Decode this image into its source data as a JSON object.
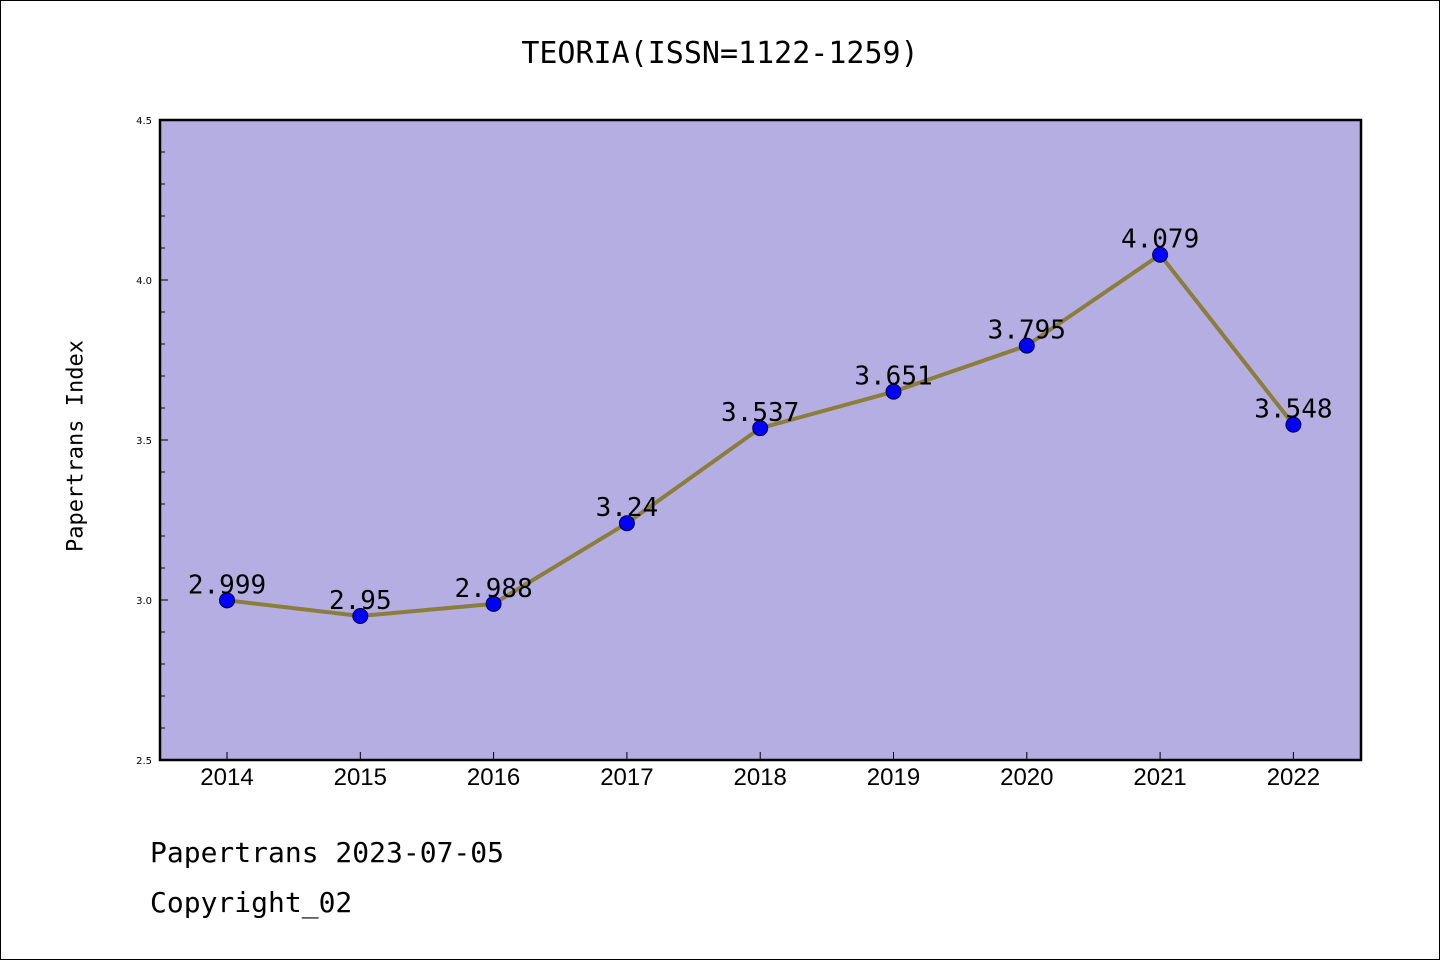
{
  "chart_data": {
    "type": "line",
    "title": "TEORIA(ISSN=1122-1259)",
    "xlabel": "",
    "ylabel": "Papertrans Index",
    "categories": [
      "2014",
      "2015",
      "2016",
      "2017",
      "2018",
      "2019",
      "2020",
      "2021",
      "2022"
    ],
    "series": [
      {
        "values": [
          2.999,
          2.95,
          2.988,
          3.24,
          3.537,
          3.651,
          3.795,
          4.079,
          3.548
        ],
        "labels": [
          "2.999",
          "2.95",
          "2.988",
          "3.24",
          "3.537",
          "3.651",
          "3.795",
          "4.079",
          "3.548"
        ],
        "line_color": "#8b7d3a",
        "marker_color": "#0000ff"
      }
    ],
    "ylim": [
      2.5,
      4.5
    ],
    "yticks": [
      "2.5",
      "3.0",
      "3.5",
      "4.0",
      "4.5"
    ],
    "grid": false,
    "plot_background": "#b5aee2"
  },
  "footer": {
    "line1": "Papertrans 2023-07-05",
    "line2": "Copyright_02"
  }
}
